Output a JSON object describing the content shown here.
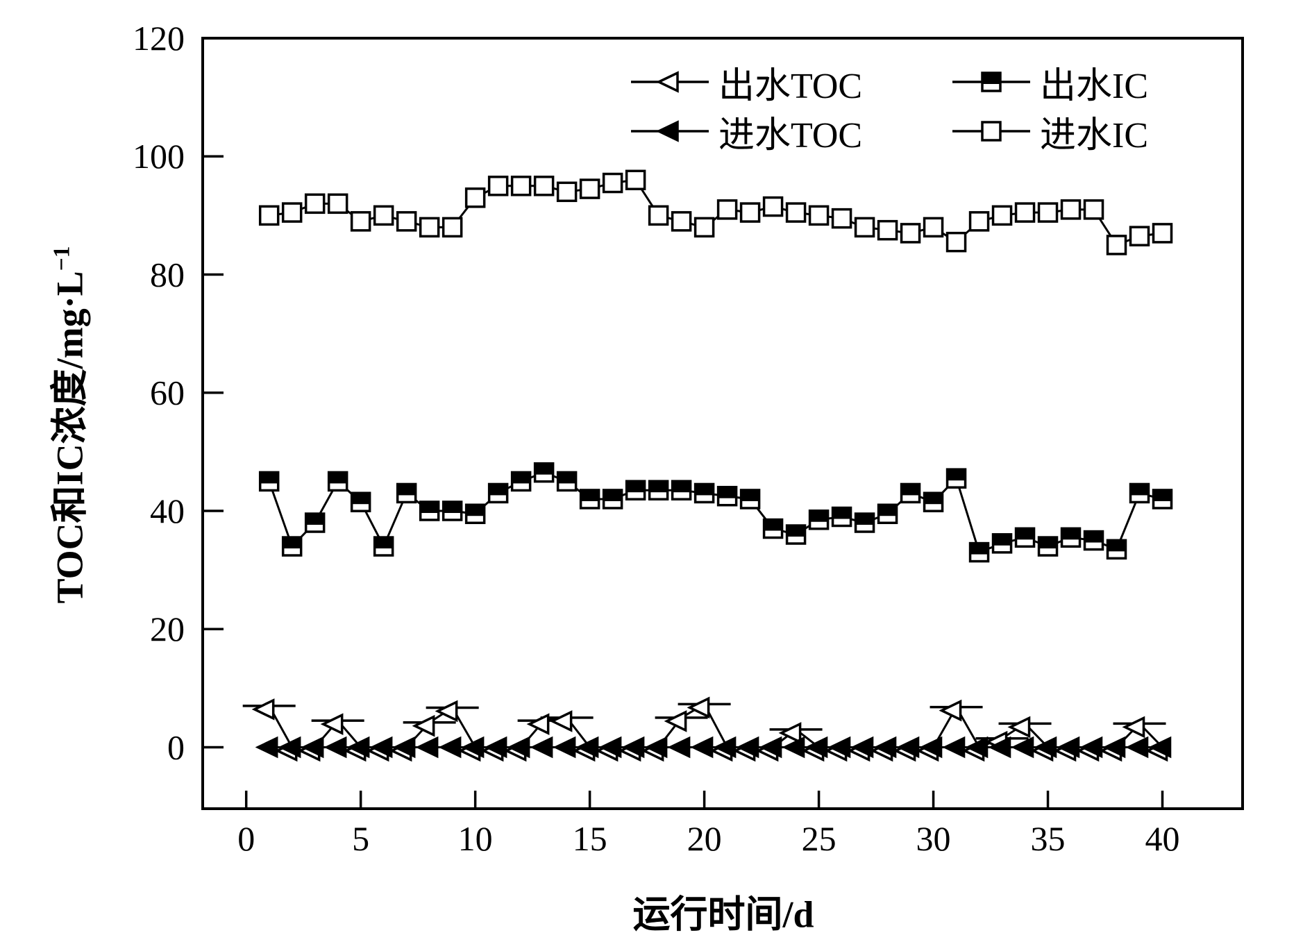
{
  "figure": {
    "background": "#ffffff",
    "ink_color": "#000000"
  },
  "chart_data": {
    "type": "line",
    "title": "",
    "xlabel": "运行时间/d",
    "ylabel": "TOC和IC浓度/mg·L⁻¹",
    "ylabel_main": "TOC和IC浓度/mg·L",
    "ylabel_sup": "−1",
    "grid": false,
    "legend_position": "top-inside-two-columns",
    "xlim": [
      -1.9,
      43.5
    ],
    "ylim": [
      -10.4,
      120
    ],
    "x_ticks": [
      0,
      5,
      10,
      15,
      20,
      25,
      30,
      35,
      40
    ],
    "y_ticks": [
      0,
      20,
      40,
      60,
      80,
      100,
      120
    ],
    "x": [
      1,
      2,
      3,
      4,
      5,
      6,
      7,
      8,
      9,
      10,
      11,
      12,
      13,
      14,
      15,
      16,
      17,
      18,
      19,
      20,
      21,
      22,
      23,
      24,
      25,
      26,
      27,
      28,
      29,
      30,
      31,
      32,
      33,
      34,
      35,
      36,
      37,
      38,
      39,
      40
    ],
    "series": [
      {
        "name": "出水TOC",
        "slug": "effluent-toc",
        "marker": "triangle-left-open",
        "line": "solid",
        "values": [
          7,
          0,
          0,
          4.5,
          0,
          0,
          0,
          4.2,
          6.7,
          0,
          0,
          0,
          4.5,
          5,
          0,
          0,
          0,
          0,
          5,
          7.3,
          0,
          0,
          0,
          3,
          0,
          0,
          0,
          0,
          0,
          0,
          6.8,
          0,
          1.5,
          4,
          0,
          0,
          0,
          0,
          4,
          0
        ]
      },
      {
        "name": "出水IC",
        "slug": "effluent-ic",
        "marker": "square-half-filled",
        "line": "solid",
        "values": [
          45,
          34,
          38,
          45,
          41.5,
          34,
          43,
          40,
          40,
          39.5,
          43,
          45,
          46.5,
          45,
          42,
          42,
          43.5,
          43.5,
          43.5,
          43,
          42.5,
          42,
          37,
          36,
          38.5,
          39,
          38,
          39.5,
          43,
          41.5,
          45.5,
          33,
          34.5,
          35.5,
          34,
          35.5,
          35,
          33.5,
          43,
          42
        ]
      },
      {
        "name": "进水TOC",
        "slug": "influent-toc",
        "marker": "triangle-left-filled",
        "line": "solid",
        "values": [
          0,
          0,
          0,
          0,
          0,
          0,
          0,
          0,
          0,
          0,
          0,
          0,
          0,
          0,
          0,
          0,
          0,
          0,
          0,
          0,
          0,
          0,
          0,
          0,
          0,
          0,
          0,
          0,
          0,
          0,
          0,
          0,
          0,
          0,
          0,
          0,
          0,
          0,
          0,
          0
        ]
      },
      {
        "name": "进水IC",
        "slug": "influent-ic",
        "marker": "square-open",
        "line": "solid",
        "values": [
          90,
          90.5,
          92,
          92,
          89,
          90,
          89,
          88,
          88,
          93,
          95,
          95,
          95,
          94,
          94.5,
          95.5,
          96,
          90,
          89,
          88,
          91,
          90.5,
          91.5,
          90.5,
          90,
          89.5,
          88,
          87.5,
          87,
          88,
          85.5,
          89,
          90,
          90.5,
          90.5,
          91,
          91,
          85,
          86.5,
          87
        ]
      }
    ]
  }
}
